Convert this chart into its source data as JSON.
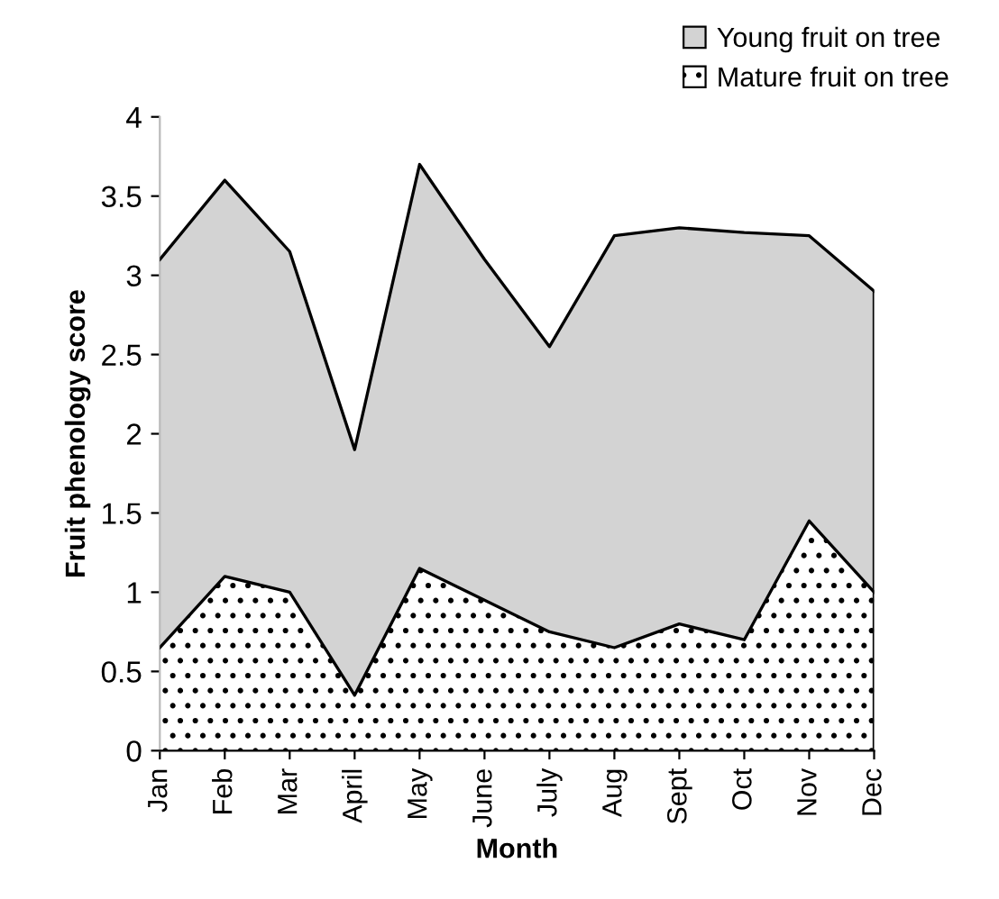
{
  "chart_data": {
    "type": "area",
    "stacked": true,
    "xlabel": "Month",
    "ylabel": "Fruit phenology score",
    "categories": [
      "Jan",
      "Feb",
      "Mar",
      "April",
      "May",
      "June",
      "July",
      "Aug",
      "Sept",
      "Oct",
      "Nov",
      "Dec"
    ],
    "series": [
      {
        "name": "Mature fruit on tree",
        "color": "#ffffff",
        "values": [
          0.65,
          1.1,
          1.0,
          0.35,
          1.15,
          0.95,
          0.75,
          0.65,
          0.8,
          0.7,
          1.45,
          1.0
        ]
      },
      {
        "name": "Young fruit on tree",
        "color": "#d3d3d3",
        "values": [
          2.45,
          2.5,
          2.15,
          1.55,
          2.55,
          2.15,
          1.8,
          2.6,
          2.5,
          2.57,
          1.8,
          1.9
        ]
      }
    ],
    "ylim": [
      0,
      4
    ],
    "yticks": [
      0,
      0.5,
      1,
      1.5,
      2,
      2.5,
      3,
      3.5,
      4
    ],
    "grid": false,
    "legend": "top right"
  }
}
